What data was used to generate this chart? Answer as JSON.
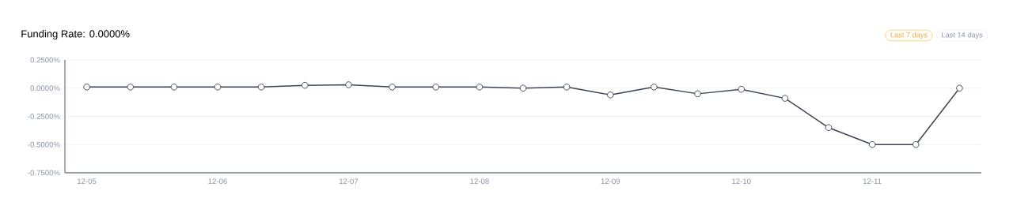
{
  "chart_data": {
    "type": "line",
    "title": "Funding Rate: 0.0000%",
    "categories": [
      "12-05",
      null,
      null,
      "12-06",
      null,
      null,
      "12-07",
      null,
      null,
      "12-08",
      null,
      null,
      "12-09",
      null,
      null,
      "12-10",
      null,
      null,
      "12-11",
      null,
      null
    ],
    "values": [
      0.01,
      0.01,
      0.01,
      0.01,
      0.01,
      0.025,
      0.03,
      0.01,
      0.01,
      0.01,
      0,
      0.01,
      -0.06,
      0.01,
      -0.05,
      -0.01,
      -0.09,
      -0.35,
      -0.5,
      -0.5,
      0
    ],
    "color": "#3d4451",
    "ylim": [
      -0.75,
      0.25
    ],
    "yticks": [
      {
        "value": -0.75,
        "label": "-0.7500%"
      },
      {
        "value": -0.5,
        "label": "-0.5000%"
      },
      {
        "value": -0.25,
        "label": "-0.2500%"
      },
      {
        "value": 0,
        "label": "0.0000%"
      },
      {
        "value": 0.25,
        "label": "0.2500%"
      }
    ],
    "grid": "y",
    "marker": "circle",
    "line_style": "solid",
    "annotations": [
      "Last 7 days",
      "Last 14 days"
    ]
  }
}
